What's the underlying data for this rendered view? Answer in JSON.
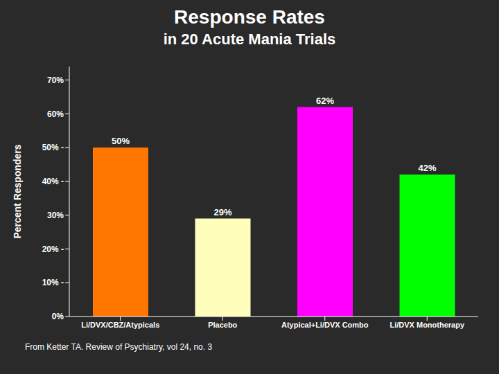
{
  "chart_data": {
    "type": "bar",
    "title": "Response Rates",
    "subtitle": "in 20 Acute Mania Trials",
    "categories": [
      "Li/DVX/CBZ/Atypicals",
      "Placebo",
      "Atypical+Li/DVX Combo",
      "Li/DVX Monotherapy"
    ],
    "values": [
      50,
      29,
      62,
      42
    ],
    "value_labels": [
      "50%",
      "29%",
      "62%",
      "42%"
    ],
    "data_labels": true,
    "colors": [
      "#FF7700",
      "#FFFFBB",
      "#FF00FF",
      "#00FF00"
    ],
    "ylabel": "Percent Responders",
    "ylim": [
      0,
      74
    ],
    "yticks": [
      {
        "value": 0,
        "label": "0%"
      },
      {
        "value": 10,
        "label": "10% -"
      },
      {
        "value": 20,
        "label": "20% -"
      },
      {
        "value": 30,
        "label": "30%"
      },
      {
        "value": 40,
        "label": "40% -"
      },
      {
        "value": 50,
        "label": "50% -"
      },
      {
        "value": 60,
        "label": "60%"
      },
      {
        "value": 70,
        "label": "70%"
      }
    ],
    "grid": false,
    "annotations": [
      "From Ketter TA.  Review of Psychiatry, vol 24, no. 3"
    ]
  }
}
